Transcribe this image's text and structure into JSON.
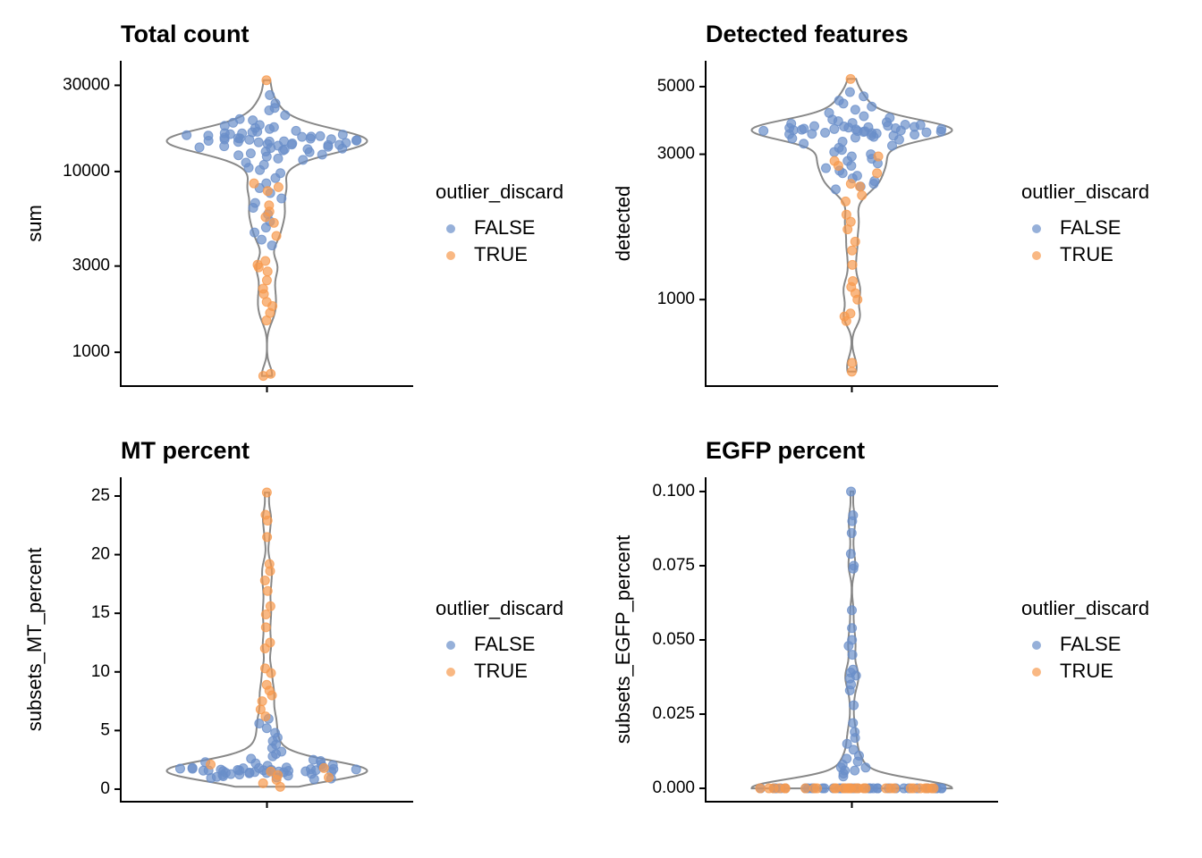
{
  "chart_data": [
    {
      "type": "violin",
      "title": "Total count",
      "y_label": "sum",
      "log_y": true,
      "ylim": [
        650,
        41000
      ],
      "yticks": [
        1000,
        3000,
        10000,
        30000
      ],
      "legend_title": "outlier_discard",
      "legend": "right",
      "series": [
        {
          "name": "FALSE",
          "color": "#6a8fc9",
          "values": [
            14800,
            15200,
            13900,
            14500,
            16100,
            12800,
            15600,
            14200,
            13500,
            17200,
            15900,
            14700,
            13100,
            16500,
            14000,
            15300,
            18100,
            12300,
            14900,
            16800,
            13700,
            15100,
            19500,
            11800,
            14400,
            16300,
            13300,
            15800,
            20500,
            11200,
            14600,
            17600,
            12600,
            15000,
            21800,
            10500,
            14100,
            16000,
            13800,
            15400,
            22500,
            9800,
            14300,
            17900,
            12100,
            15700,
            9200,
            13600,
            16600,
            14850,
            23800,
            8600,
            15250,
            12900,
            18600,
            14050,
            8100,
            16250,
            13250,
            7600,
            14650,
            19200,
            7100,
            11600,
            6700,
            15550,
            6300,
            12400,
            5800,
            17400,
            5300,
            10900,
            4900,
            4600,
            26500,
            10200,
            4200,
            3900,
            13400,
            15050
          ]
        },
        {
          "name": "TRUE",
          "color": "#f79a4e",
          "values": [
            32000,
            8600,
            8200,
            7800,
            6500,
            6000,
            5600,
            5200,
            4400,
            3200,
            3050,
            2950,
            2800,
            2500,
            2250,
            2100,
            1900,
            1800,
            1650,
            1500,
            760,
            740
          ]
        }
      ]
    },
    {
      "type": "violin",
      "title": "Detected features",
      "y_label": "detected",
      "log_y": true,
      "ylim": [
        520,
        6080
      ],
      "yticks": [
        1000,
        3000,
        5000
      ],
      "legend_title": "outlier_discard",
      "legend": "right",
      "series": [
        {
          "name": "FALSE",
          "color": "#6a8fc9",
          "values": [
            3600,
            3650,
            3550,
            3700,
            3500,
            3750,
            3450,
            3800,
            3400,
            3620,
            3580,
            3680,
            3520,
            3850,
            3350,
            3900,
            3300,
            3640,
            3560,
            3720,
            3480,
            3950,
            3250,
            4000,
            3200,
            3610,
            3590,
            3660,
            3540,
            4100,
            3150,
            4200,
            3100,
            3630,
            3570,
            3780,
            3420,
            4300,
            3050,
            4400,
            3000,
            3690,
            3510,
            4500,
            2950,
            2900,
            3820,
            3380,
            2850,
            4650,
            2800,
            3670,
            3530,
            2750,
            2700,
            3740,
            2650,
            2600,
            3460,
            2550,
            2500,
            3710,
            2450,
            2400,
            3490,
            2350,
            2300,
            3625,
            3575,
            4800
          ]
        },
        {
          "name": "TRUE",
          "color": "#f79a4e",
          "values": [
            5300,
            2950,
            2850,
            2750,
            2600,
            2400,
            2350,
            2200,
            2100,
            1900,
            1800,
            1700,
            1550,
            1450,
            1300,
            1150,
            1100,
            1050,
            1000,
            900,
            880,
            850,
            620,
            580
          ]
        }
      ]
    },
    {
      "type": "violin",
      "title": "MT percent",
      "y_label": "subsets_MT_percent",
      "log_y": false,
      "ylim": [
        -1.07,
        26.6
      ],
      "yticks": [
        0,
        5,
        10,
        15,
        20,
        25
      ],
      "legend_title": "outlier_discard",
      "legend": "right",
      "series": [
        {
          "name": "FALSE",
          "color": "#6a8fc9",
          "values": [
            1.6,
            1.7,
            1.5,
            1.8,
            1.4,
            1.9,
            1.3,
            2.0,
            1.65,
            1.55,
            1.75,
            1.45,
            1.85,
            1.35,
            2.1,
            1.25,
            2.2,
            1.2,
            1.68,
            1.52,
            1.72,
            1.48,
            2.3,
            1.15,
            2.4,
            1.1,
            1.62,
            1.58,
            2.5,
            1.05,
            2.6,
            1.0,
            1.78,
            1.42,
            2.8,
            0.95,
            3.0,
            0.9,
            1.66,
            1.54,
            3.2,
            0.85,
            3.5,
            1.82,
            1.38,
            3.8,
            4.1,
            1.74,
            1.46,
            4.4,
            4.8,
            1.61,
            1.59,
            5.2,
            5.6,
            2.05,
            1.28,
            1.64,
            1.56,
            6.0
          ]
        },
        {
          "name": "TRUE",
          "color": "#f79a4e",
          "values": [
            25.3,
            23.4,
            22.9,
            21.5,
            19.2,
            18.6,
            17.8,
            16.9,
            15.6,
            14.9,
            13.8,
            12.5,
            12.0,
            10.3,
            9.9,
            8.9,
            8.4,
            8.0,
            7.5,
            6.8,
            6.2,
            2.1,
            1.8,
            1.5,
            1.2,
            0.8,
            0.5,
            0.2,
            1.0
          ]
        }
      ]
    },
    {
      "type": "violin",
      "title": "EGFP percent",
      "y_label": "subsets_EGFP_percent",
      "log_y": false,
      "ylim": [
        -0.0045,
        0.1048
      ],
      "yticks": [
        {
          "value": 0,
          "label": "0.000"
        },
        {
          "value": 0.025,
          "label": "0.025"
        },
        {
          "value": 0.05,
          "label": "0.050"
        },
        {
          "value": 0.075,
          "label": "0.075"
        },
        {
          "value": 0.1,
          "label": "0.100"
        }
      ],
      "legend_title": "outlier_discard",
      "legend": "right",
      "series": [
        {
          "name": "FALSE",
          "color": "#6a8fc9",
          "values": [
            0.1,
            0.092,
            0.09,
            0.086,
            0.079,
            0.075,
            0.074,
            0.06,
            0.054,
            0.05,
            0.048,
            0.045,
            0.04,
            0.039,
            0.038,
            0.037,
            0.035,
            0.033,
            0.028,
            0.022,
            0.019,
            0.017,
            0.015,
            0.013,
            0.011,
            0.01,
            0.009,
            0.008,
            0.007,
            0.007,
            0.006,
            0.006,
            0.005,
            0.004,
            0,
            0,
            0,
            0,
            0,
            0,
            0,
            0,
            0,
            0,
            0,
            0,
            0,
            0,
            0,
            0,
            0,
            0,
            0,
            0,
            0,
            0,
            0,
            0,
            0,
            0,
            0,
            0,
            0,
            0,
            0,
            0,
            0,
            0,
            0,
            0,
            0,
            0,
            0,
            0
          ]
        },
        {
          "name": "TRUE",
          "color": "#f79a4e",
          "values": [
            0,
            0,
            0,
            0,
            0,
            0,
            0,
            0,
            0,
            0,
            0,
            0,
            0,
            0,
            0,
            0,
            0,
            0,
            0,
            0,
            0,
            0,
            0,
            0,
            0,
            0,
            0,
            0,
            0,
            0
          ]
        }
      ]
    }
  ]
}
